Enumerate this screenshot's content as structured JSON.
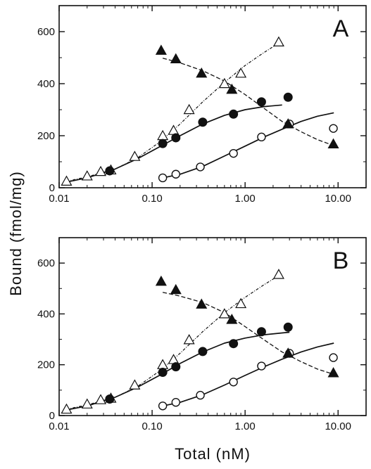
{
  "chart_data": [
    {
      "type": "scatter",
      "panel_label": "A",
      "xscale": "log",
      "xlim": [
        0.01,
        20
      ],
      "ylim": [
        0,
        700
      ],
      "xticks": [
        0.01,
        0.1,
        1,
        10
      ],
      "xtick_labels": [
        "0.01",
        "0.10",
        "1.00",
        "10.00"
      ],
      "yticks": [
        0,
        200,
        400,
        600
      ],
      "ytick_labels": [
        "0",
        "200",
        "400",
        "600"
      ],
      "series": [
        {
          "marker": "open-triangle",
          "line": "dash-dot",
          "x": [
            0.012,
            0.02,
            0.028,
            0.036,
            0.065,
            0.13,
            0.17,
            0.25,
            0.6,
            0.9,
            2.3
          ],
          "y": [
            25,
            45,
            62,
            68,
            120,
            200,
            220,
            300,
            400,
            440,
            560
          ],
          "fit_x": [
            0.012,
            0.02,
            0.04,
            0.07,
            0.12,
            0.2,
            0.35,
            0.6,
            1.0,
            1.6,
            2.4
          ],
          "fit_y": [
            25,
            42,
            72,
            115,
            175,
            245,
            330,
            405,
            470,
            520,
            560
          ]
        },
        {
          "marker": "filled-circle",
          "line": "solid",
          "x": [
            0.035,
            0.13,
            0.18,
            0.35,
            0.75,
            1.5,
            2.9
          ],
          "y": [
            65,
            170,
            192,
            252,
            283,
            330,
            348
          ],
          "fit_x": [
            0.012,
            0.02,
            0.04,
            0.07,
            0.12,
            0.2,
            0.35,
            0.6,
            1.0,
            1.6,
            2.5
          ],
          "fit_y": [
            22,
            38,
            72,
            112,
            157,
            200,
            245,
            278,
            300,
            312,
            318
          ]
        },
        {
          "marker": "open-circle",
          "line": "solid",
          "x": [
            0.13,
            0.18,
            0.33,
            0.75,
            1.5,
            3.0,
            8.9
          ],
          "y": [
            38,
            52,
            80,
            132,
            195,
            245,
            228
          ],
          "fit_x": [
            0.13,
            0.2,
            0.35,
            0.6,
            1.0,
            1.6,
            2.5,
            4.0,
            6.0,
            9.0
          ],
          "fit_y": [
            38,
            52,
            82,
            122,
            160,
            195,
            225,
            255,
            275,
            288
          ]
        },
        {
          "marker": "filled-triangle",
          "line": "dashed",
          "x": [
            0.125,
            0.18,
            0.34,
            0.72,
            2.9,
            8.9
          ],
          "y": [
            528,
            495,
            440,
            378,
            245,
            168
          ],
          "fit_x": [
            0.13,
            0.2,
            0.35,
            0.6,
            1.0,
            1.6,
            2.5,
            4.0,
            6.0,
            9.0
          ],
          "fit_y": [
            498,
            480,
            450,
            410,
            358,
            305,
            255,
            215,
            185,
            162
          ]
        }
      ]
    },
    {
      "type": "scatter",
      "panel_label": "B",
      "xscale": "log",
      "xlim": [
        0.01,
        20
      ],
      "ylim": [
        0,
        700
      ],
      "xticks": [
        0.01,
        0.1,
        1,
        10
      ],
      "xtick_labels": [
        "0.01",
        "0.10",
        "1.00",
        "10.00"
      ],
      "yticks": [
        0,
        200,
        400,
        600
      ],
      "ytick_labels": [
        "0",
        "200",
        "400",
        "600"
      ],
      "series": [
        {
          "marker": "open-triangle",
          "line": "dash-dot",
          "x": [
            0.012,
            0.02,
            0.028,
            0.036,
            0.065,
            0.13,
            0.17,
            0.25,
            0.6,
            0.9,
            2.3
          ],
          "y": [
            25,
            45,
            62,
            68,
            120,
            200,
            220,
            298,
            400,
            440,
            555
          ],
          "fit_x": [
            0.012,
            0.02,
            0.04,
            0.07,
            0.12,
            0.2,
            0.35,
            0.6,
            1.0,
            1.6,
            2.4
          ],
          "fit_y": [
            25,
            42,
            72,
            115,
            175,
            245,
            330,
            405,
            465,
            515,
            555
          ]
        },
        {
          "marker": "filled-circle",
          "line": "solid",
          "x": [
            0.035,
            0.13,
            0.18,
            0.35,
            0.75,
            1.5,
            2.9
          ],
          "y": [
            65,
            170,
            192,
            252,
            283,
            330,
            348
          ],
          "fit_x": [
            0.012,
            0.02,
            0.04,
            0.07,
            0.12,
            0.2,
            0.35,
            0.6,
            1.0,
            1.6,
            2.5,
            3.0
          ],
          "fit_y": [
            22,
            38,
            72,
            112,
            158,
            205,
            250,
            285,
            305,
            318,
            325,
            328
          ]
        },
        {
          "marker": "open-circle",
          "line": "solid",
          "x": [
            0.13,
            0.18,
            0.33,
            0.75,
            1.5,
            3.0,
            8.9
          ],
          "y": [
            38,
            52,
            80,
            132,
            195,
            245,
            228
          ],
          "fit_x": [
            0.13,
            0.2,
            0.35,
            0.6,
            1.0,
            1.6,
            2.5,
            4.0,
            6.0,
            9.0
          ],
          "fit_y": [
            38,
            52,
            82,
            120,
            158,
            192,
            222,
            250,
            270,
            285
          ]
        },
        {
          "marker": "filled-triangle",
          "line": "dashed",
          "x": [
            0.125,
            0.18,
            0.34,
            0.72,
            2.9,
            8.9
          ],
          "y": [
            528,
            495,
            438,
            378,
            245,
            168
          ],
          "fit_x": [
            0.13,
            0.2,
            0.35,
            0.6,
            1.0,
            1.6,
            2.5,
            4.0,
            6.0,
            9.0
          ],
          "fit_y": [
            485,
            470,
            445,
            405,
            350,
            298,
            250,
            212,
            183,
            162
          ]
        }
      ]
    }
  ],
  "ylabel": "Bound (fmol/mg)",
  "xlabel": "Total (nM)"
}
